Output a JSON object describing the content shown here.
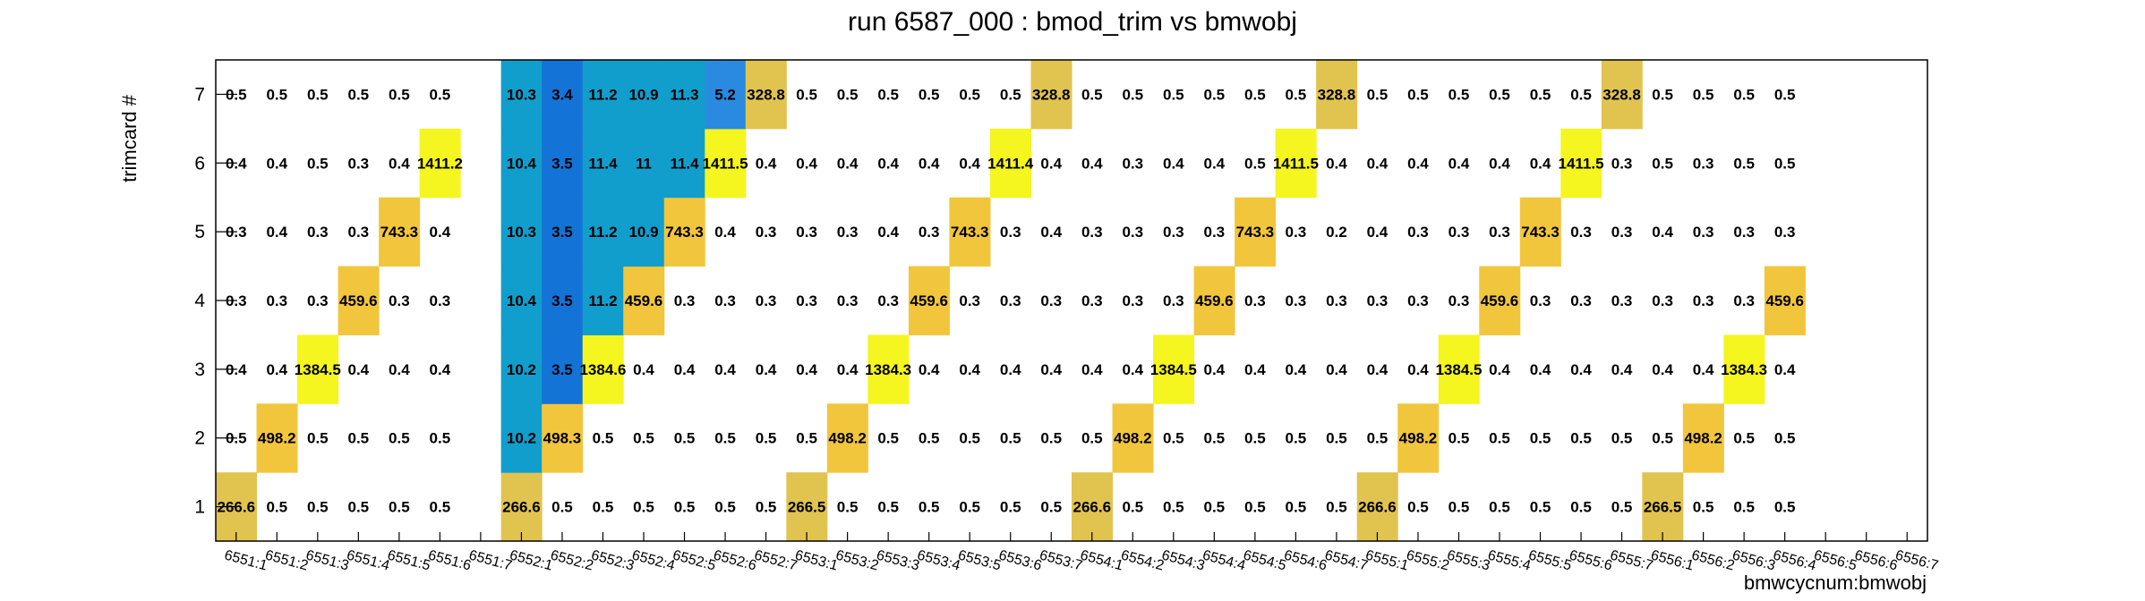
{
  "chart_data": {
    "type": "heatmap",
    "title": "run 6587_000 : bmod_trim vs bmwobj",
    "xlabel": "bmwcycnum:bmwobj",
    "ylabel": "trimcard #",
    "x_categories": [
      "6551:1",
      "6551:2",
      "6551:3",
      "6551:4",
      "6551:5",
      "6551:6",
      "6551:7",
      "6552:1",
      "6552:2",
      "6552:3",
      "6552:4",
      "6552:5",
      "6552:6",
      "6552:7",
      "6553:1",
      "6553:2",
      "6553:3",
      "6553:4",
      "6553:5",
      "6553:6",
      "6553:7",
      "6554:1",
      "6554:2",
      "6554:3",
      "6554:4",
      "6554:5",
      "6554:6",
      "6554:7",
      "6555:1",
      "6555:2",
      "6555:3",
      "6555:4",
      "6555:5",
      "6555:6",
      "6555:7",
      "6556:1",
      "6556:2",
      "6556:3",
      "6556:4",
      "6556:5",
      "6556:6",
      "6556:7"
    ],
    "y_categories": [
      "1",
      "2",
      "3",
      "4",
      "5",
      "6",
      "7"
    ],
    "palette": {
      "low": "#f5f51f",
      "mid": "#e1c350",
      "midhigh": "#f2c63c",
      "high": "#119ecd",
      "vhigh": "#1473d6",
      "blue": "#2a8ae0"
    },
    "values": [
      [
        266.6,
        0.5,
        0.5,
        0.5,
        0.5,
        0.5,
        null,
        266.6,
        0.5,
        0.5,
        0.5,
        0.5,
        0.5,
        0.5,
        266.5,
        0.5,
        0.5,
        0.5,
        0.5,
        0.5,
        0.5,
        266.6,
        0.5,
        0.5,
        0.5,
        0.5,
        0.5,
        0.5,
        266.6,
        0.5,
        0.5,
        0.5,
        0.5,
        0.5,
        0.5,
        266.5,
        0.5,
        0.5,
        0.5,
        null,
        null,
        null
      ],
      [
        0.5,
        498.2,
        0.5,
        0.5,
        0.5,
        0.5,
        null,
        10.2,
        498.3,
        0.5,
        0.5,
        0.5,
        0.5,
        0.5,
        0.5,
        498.2,
        0.5,
        0.5,
        0.5,
        0.5,
        0.5,
        0.5,
        498.2,
        0.5,
        0.5,
        0.5,
        0.5,
        0.5,
        0.5,
        498.2,
        0.5,
        0.5,
        0.5,
        0.5,
        0.5,
        0.5,
        498.2,
        0.5,
        0.5,
        null,
        null,
        null
      ],
      [
        0.4,
        0.4,
        1384.5,
        0.4,
        0.4,
        0.4,
        null,
        10.2,
        3.5,
        1384.6,
        0.4,
        0.4,
        0.4,
        0.4,
        0.4,
        0.4,
        1384.3,
        0.4,
        0.4,
        0.4,
        0.4,
        0.4,
        0.4,
        1384.5,
        0.4,
        0.4,
        0.4,
        0.4,
        0.4,
        0.4,
        1384.5,
        0.4,
        0.4,
        0.4,
        0.4,
        0.4,
        0.4,
        1384.3,
        0.4,
        null,
        null,
        null
      ],
      [
        0.3,
        0.3,
        0.3,
        459.6,
        0.3,
        0.3,
        null,
        10.4,
        3.5,
        11.2,
        459.6,
        0.3,
        0.3,
        0.3,
        0.3,
        0.3,
        0.3,
        459.6,
        0.3,
        0.3,
        0.3,
        0.3,
        0.3,
        0.3,
        459.6,
        0.3,
        0.3,
        0.3,
        0.3,
        0.3,
        0.3,
        459.6,
        0.3,
        0.3,
        0.3,
        0.3,
        0.3,
        0.3,
        459.6,
        null,
        null,
        null
      ],
      [
        0.3,
        0.4,
        0.3,
        0.3,
        743.3,
        0.4,
        null,
        10.3,
        3.5,
        11.2,
        10.9,
        743.3,
        0.4,
        0.3,
        0.3,
        0.3,
        0.4,
        0.3,
        743.3,
        0.3,
        0.4,
        0.3,
        0.3,
        0.3,
        0.3,
        743.3,
        0.3,
        0.2,
        0.4,
        0.3,
        0.3,
        0.3,
        743.3,
        0.3,
        0.3,
        0.4,
        0.3,
        0.3,
        0.3,
        null,
        null,
        null
      ],
      [
        0.4,
        0.4,
        0.5,
        0.3,
        0.4,
        1411.2,
        null,
        10.4,
        3.5,
        11.4,
        11.0,
        11.4,
        1411.5,
        0.4,
        0.4,
        0.4,
        0.4,
        0.4,
        0.4,
        1411.4,
        0.4,
        0.4,
        0.3,
        0.4,
        0.4,
        0.5,
        1411.5,
        0.4,
        0.4,
        0.4,
        0.4,
        0.4,
        0.4,
        1411.5,
        0.3,
        0.5,
        0.3,
        0.5,
        0.5,
        null,
        null,
        null
      ],
      [
        0.5,
        0.5,
        0.5,
        0.5,
        0.5,
        0.5,
        null,
        10.3,
        3.4,
        11.2,
        10.9,
        11.3,
        5.2,
        328.8,
        0.5,
        0.5,
        0.5,
        0.5,
        0.5,
        0.5,
        328.8,
        0.5,
        0.5,
        0.5,
        0.5,
        0.5,
        0.5,
        328.8,
        0.5,
        0.5,
        0.5,
        0.5,
        0.5,
        0.5,
        328.8,
        0.5,
        0.5,
        0.5,
        0.5,
        null,
        null,
        null
      ]
    ],
    "cell_colors": [
      [
        "#e1c350",
        null,
        null,
        null,
        null,
        null,
        null,
        "#e1c350",
        null,
        null,
        null,
        null,
        null,
        null,
        "#e1c350",
        null,
        null,
        null,
        null,
        null,
        null,
        "#e1c350",
        null,
        null,
        null,
        null,
        null,
        null,
        "#e1c350",
        null,
        null,
        null,
        null,
        null,
        null,
        "#e1c350",
        null,
        null,
        null,
        null,
        null,
        null
      ],
      [
        null,
        "#f2c63c",
        null,
        null,
        null,
        null,
        null,
        "#119ecd",
        "#f2c63c",
        null,
        null,
        null,
        null,
        null,
        null,
        "#f2c63c",
        null,
        null,
        null,
        null,
        null,
        null,
        "#f2c63c",
        null,
        null,
        null,
        null,
        null,
        null,
        "#f2c63c",
        null,
        null,
        null,
        null,
        null,
        null,
        "#f2c63c",
        null,
        null,
        null,
        null,
        null
      ],
      [
        null,
        null,
        "#f5f51f",
        null,
        null,
        null,
        null,
        "#119ecd",
        "#1473d6",
        "#f5f51f",
        null,
        null,
        null,
        null,
        null,
        null,
        "#f5f51f",
        null,
        null,
        null,
        null,
        null,
        null,
        "#f5f51f",
        null,
        null,
        null,
        null,
        null,
        null,
        "#f5f51f",
        null,
        null,
        null,
        null,
        null,
        null,
        "#f5f51f",
        null,
        null,
        null,
        null
      ],
      [
        null,
        null,
        null,
        "#f2c63c",
        null,
        null,
        null,
        "#119ecd",
        "#1473d6",
        "#119ecd",
        "#f2c63c",
        null,
        null,
        null,
        null,
        null,
        null,
        "#f2c63c",
        null,
        null,
        null,
        null,
        null,
        null,
        "#f2c63c",
        null,
        null,
        null,
        null,
        null,
        null,
        "#f2c63c",
        null,
        null,
        null,
        null,
        null,
        null,
        "#f2c63c",
        null,
        null,
        null
      ],
      [
        null,
        null,
        null,
        null,
        "#f2c63c",
        null,
        null,
        "#119ecd",
        "#1473d6",
        "#119ecd",
        "#119ecd",
        "#f2c63c",
        null,
        null,
        null,
        null,
        null,
        null,
        "#f2c63c",
        null,
        null,
        null,
        null,
        null,
        null,
        "#f2c63c",
        null,
        null,
        null,
        null,
        null,
        null,
        "#f2c63c",
        null,
        null,
        null,
        null,
        null,
        null,
        null,
        null,
        null
      ],
      [
        null,
        null,
        null,
        null,
        null,
        "#f5f51f",
        null,
        "#119ecd",
        "#1473d6",
        "#119ecd",
        "#119ecd",
        "#119ecd",
        "#f5f51f",
        null,
        null,
        null,
        null,
        null,
        null,
        "#f5f51f",
        null,
        null,
        null,
        null,
        null,
        null,
        "#f5f51f",
        null,
        null,
        null,
        null,
        null,
        null,
        "#f5f51f",
        null,
        null,
        null,
        null,
        null,
        null,
        null,
        null
      ],
      [
        null,
        null,
        null,
        null,
        null,
        null,
        null,
        "#119ecd",
        "#1473d6",
        "#119ecd",
        "#119ecd",
        "#119ecd",
        "#2a8ae0",
        "#e1c350",
        null,
        null,
        null,
        null,
        null,
        null,
        "#e1c350",
        null,
        null,
        null,
        null,
        null,
        null,
        "#e1c350",
        null,
        null,
        null,
        null,
        null,
        null,
        "#e1c350",
        null,
        null,
        null,
        null,
        null,
        null,
        null
      ]
    ]
  }
}
